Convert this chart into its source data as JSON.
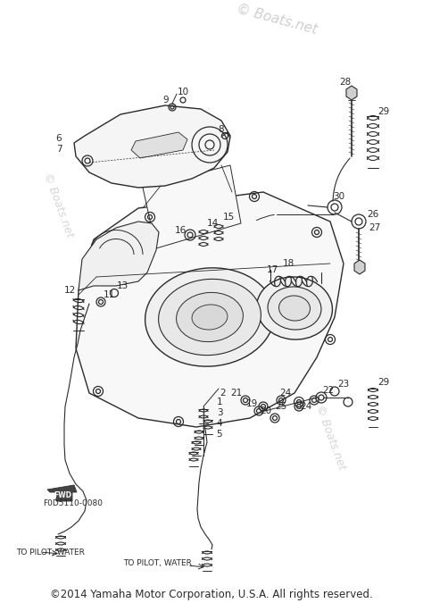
{
  "copyright_text": "©2014 Yamaha Motor Corporation, U.S.A. All rights reserved.",
  "watermark_text_1": "© Boats.net",
  "watermark_text_2": "© Boats.net",
  "watermark_text_3": "© Boats.net",
  "diagram_code": "F0D5110-0080",
  "fwd_label": "FWD",
  "label_to_pilot_water_1": "TO PILOT, WATER",
  "label_to_pilot_water_2": "TO PILOT, WATER",
  "bg_color": "#ffffff",
  "line_color": "#2a2a2a",
  "watermark_color": "#bbbbbb",
  "font_size_parts": 7.5,
  "font_size_copyright": 8.5,
  "font_size_watermark": 10,
  "font_size_labels": 6.5
}
